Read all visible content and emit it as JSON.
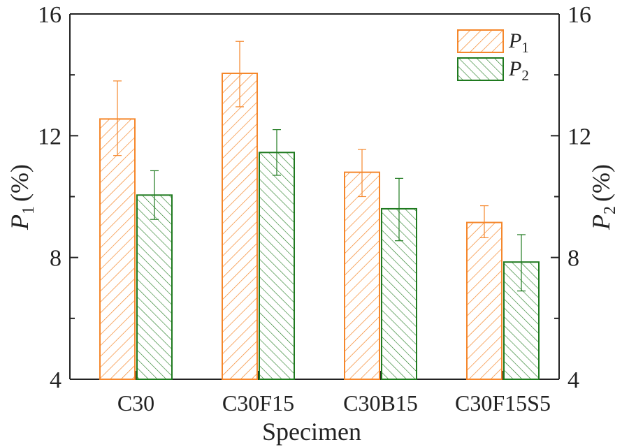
{
  "chart_data": {
    "type": "bar",
    "title": "",
    "xlabel": "Specimen",
    "ylabel": {
      "symbol": "P",
      "subscript": "1",
      "unit": "(%)"
    },
    "ylabel_right": {
      "symbol": "P",
      "subscript": "2",
      "unit": "(%)"
    },
    "ylim": [
      4,
      16
    ],
    "yticks": [
      "4",
      "8",
      "12",
      "16"
    ],
    "categories": [
      "C30",
      "C30F15",
      "C30B15",
      "C30F15S5"
    ],
    "series": [
      {
        "name": "P1",
        "legend": {
          "symbol": "P",
          "subscript": "1"
        },
        "color": "#f5872b",
        "hatch": "forward",
        "values": [
          12.55,
          14.05,
          10.8,
          9.15
        ],
        "err_upper": [
          13.8,
          15.1,
          11.55,
          9.7
        ],
        "err_lower": [
          11.35,
          12.95,
          10.0,
          8.65
        ]
      },
      {
        "name": "P2",
        "legend": {
          "symbol": "P",
          "subscript": "2"
        },
        "color": "#1f7a1f",
        "hatch": "backward",
        "values": [
          10.05,
          11.45,
          9.6,
          7.85
        ],
        "err_upper": [
          10.85,
          12.2,
          10.6,
          8.75
        ],
        "err_lower": [
          9.25,
          10.7,
          8.55,
          6.9
        ]
      }
    ],
    "legend_position": "top-right",
    "grid": false
  }
}
